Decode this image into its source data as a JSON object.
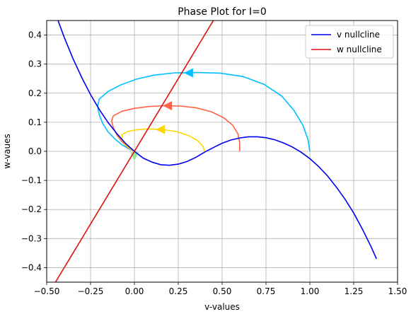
{
  "chart_data": {
    "type": "line",
    "title": "Phase Plot for I=0",
    "xlabel": "v-values",
    "ylabel": "w-vaues",
    "xlim": [
      -0.5,
      1.5
    ],
    "ylim": [
      -0.45,
      0.45
    ],
    "xticks": [
      -0.5,
      -0.25,
      0.0,
      0.25,
      0.5,
      0.75,
      1.0,
      1.25,
      1.5
    ],
    "xtick_labels": [
      "−0.50",
      "−0.25",
      "0.00",
      "0.25",
      "0.50",
      "0.75",
      "1.00",
      "1.25",
      "1.50"
    ],
    "yticks": [
      -0.4,
      -0.3,
      -0.2,
      -0.1,
      0.0,
      0.1,
      0.2,
      0.3,
      0.4
    ],
    "ytick_labels": [
      "−0.4",
      "−0.3",
      "−0.2",
      "−0.1",
      "0.0",
      "0.1",
      "0.2",
      "0.3",
      "0.4"
    ],
    "grid": true,
    "legend_position": "top-right",
    "series": [
      {
        "name": "v nullcline",
        "color": "#0000ee",
        "x": [
          -0.45,
          -0.4,
          -0.35,
          -0.3,
          -0.25,
          -0.2,
          -0.15,
          -0.1,
          -0.05,
          0.0,
          0.05,
          0.1,
          0.15,
          0.2,
          0.25,
          0.3,
          0.35,
          0.4,
          0.45,
          0.5,
          0.55,
          0.6,
          0.65,
          0.7,
          0.75,
          0.8,
          0.85,
          0.9,
          0.95,
          1.0,
          1.05,
          1.1,
          1.15,
          1.2,
          1.25,
          1.3,
          1.35,
          1.38
        ],
        "y": [
          0.474,
          0.392,
          0.319,
          0.254,
          0.195,
          0.144,
          0.099,
          0.061,
          0.027,
          0.0,
          -0.023,
          -0.037,
          -0.046,
          -0.048,
          -0.044,
          -0.035,
          -0.021,
          -0.003,
          0.013,
          0.028,
          0.039,
          0.046,
          0.05,
          0.05,
          0.047,
          0.04,
          0.029,
          0.015,
          -0.003,
          -0.025,
          -0.052,
          -0.084,
          -0.122,
          -0.164,
          -0.212,
          -0.268,
          -0.329,
          -0.37
        ]
      },
      {
        "name": "w nullcline",
        "color": "#dd1111",
        "x": [
          -0.45,
          0.45
        ],
        "y": [
          -0.45,
          0.45
        ]
      }
    ],
    "trajectories": [
      {
        "color": "#00bfff",
        "x": [
          1.0,
          0.99,
          0.96,
          0.91,
          0.84,
          0.74,
          0.62,
          0.49,
          0.36,
          0.23,
          0.11,
          0.01,
          -0.08,
          -0.15,
          -0.2,
          -0.21,
          -0.2,
          -0.18,
          -0.15,
          -0.11,
          -0.07,
          -0.03,
          0.0
        ],
        "y": [
          0.0,
          0.04,
          0.09,
          0.14,
          0.19,
          0.23,
          0.257,
          0.269,
          0.271,
          0.27,
          0.262,
          0.248,
          0.228,
          0.206,
          0.18,
          0.155,
          0.125,
          0.095,
          0.067,
          0.042,
          0.022,
          0.008,
          0.0
        ],
        "arrow": {
          "x": 0.31,
          "y": 0.27
        }
      },
      {
        "color": "#ff6347",
        "x": [
          0.6,
          0.6,
          0.59,
          0.56,
          0.51,
          0.44,
          0.35,
          0.26,
          0.17,
          0.08,
          0.0,
          -0.07,
          -0.12,
          -0.13,
          -0.12,
          -0.1,
          -0.07,
          -0.04,
          -0.01,
          0.0
        ],
        "y": [
          0.0,
          0.03,
          0.06,
          0.09,
          0.115,
          0.136,
          0.15,
          0.156,
          0.157,
          0.154,
          0.148,
          0.138,
          0.122,
          0.105,
          0.082,
          0.056,
          0.033,
          0.014,
          0.003,
          0.0
        ],
        "arrow": {
          "x": 0.19,
          "y": 0.157
        }
      },
      {
        "color": "#ffd700",
        "x": [
          0.4,
          0.39,
          0.36,
          0.31,
          0.24,
          0.16,
          0.08,
          0.01,
          -0.04,
          -0.07,
          -0.07,
          -0.05,
          -0.02,
          0.0
        ],
        "y": [
          0.0,
          0.018,
          0.037,
          0.054,
          0.068,
          0.075,
          0.077,
          0.074,
          0.068,
          0.057,
          0.041,
          0.022,
          0.007,
          0.0
        ],
        "arrow": {
          "x": 0.15,
          "y": 0.075
        }
      },
      {
        "color": "#90ee90",
        "x": [
          0.0,
          0.0
        ],
        "y": [
          0.0,
          -0.01
        ],
        "arrow": {
          "x": 0.0,
          "y": -0.02,
          "dir": "down"
        }
      }
    ]
  }
}
